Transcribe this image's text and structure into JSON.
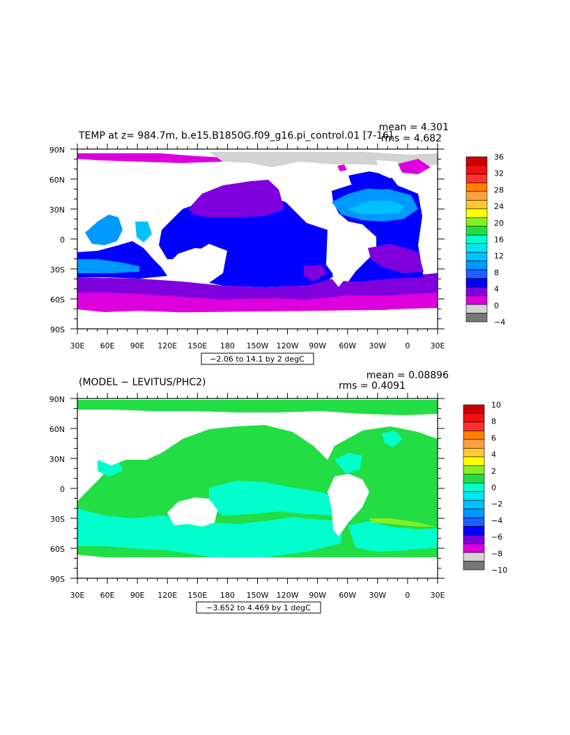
{
  "panels": [
    {
      "title": "TEMP at z= 984.7m, b.e15.B1850G.f09_g16.pi_control.01 [7-16]",
      "mean": "mean = 4.301",
      "rms": "rms = 4.682",
      "contour_info": "−2.06 to 14.1 by 2 degC",
      "colorbar_labels": [
        "36",
        "32",
        "28",
        "24",
        "20",
        "16",
        "12",
        "8",
        "4",
        "0",
        "−4"
      ],
      "colorbar_colors": [
        "#cc0000",
        "#ee1111",
        "#ff3030",
        "#ff7f00",
        "#ffa040",
        "#ffc830",
        "#ffff00",
        "#88ee22",
        "#22dd44",
        "#00ffcc",
        "#00e5ee",
        "#00c0ff",
        "#0099ff",
        "#1f5fff",
        "#0000ff",
        "#8000dd",
        "#dd00dd",
        "#d3d3d3",
        "#777777"
      ]
    },
    {
      "title": "(MODEL − LEVITUS/PHC2)",
      "mean": "mean = 0.08896",
      "rms": "rms = 0.4091",
      "contour_info": "−3.652 to 4.469 by 1 degC",
      "colorbar_labels": [
        "10",
        "8",
        "6",
        "4",
        "2",
        "0",
        "−2",
        "−4",
        "−6",
        "−8",
        "−10"
      ],
      "colorbar_colors": [
        "#cc0000",
        "#ee1111",
        "#ff3030",
        "#ff7f00",
        "#ffa040",
        "#ffc830",
        "#ffff00",
        "#88ee22",
        "#22dd44",
        "#00ffcc",
        "#00e5ee",
        "#00c0ff",
        "#0099ff",
        "#1f5fff",
        "#0000ff",
        "#8000dd",
        "#dd00dd",
        "#d3d3d3",
        "#777777"
      ]
    }
  ],
  "axes": {
    "lat_labels": [
      "90N",
      "60N",
      "30N",
      "0",
      "30S",
      "60S",
      "90S"
    ],
    "lon_labels": [
      "30E",
      "60E",
      "90E",
      "120E",
      "150E",
      "180",
      "150W",
      "120W",
      "90W",
      "60W",
      "30W",
      "0",
      "30E"
    ]
  },
  "colors": {
    "land": "#ffffff",
    "sea_ice": "#d3d3d3",
    "deep_blue": "#0000ff",
    "mid_blue": "#0099ff",
    "light_blue": "#00c0ff",
    "purple": "#8000dd",
    "magenta": "#dd00dd",
    "green": "#22dd44",
    "light_green": "#88ee22",
    "cyan": "#00ffcc"
  }
}
